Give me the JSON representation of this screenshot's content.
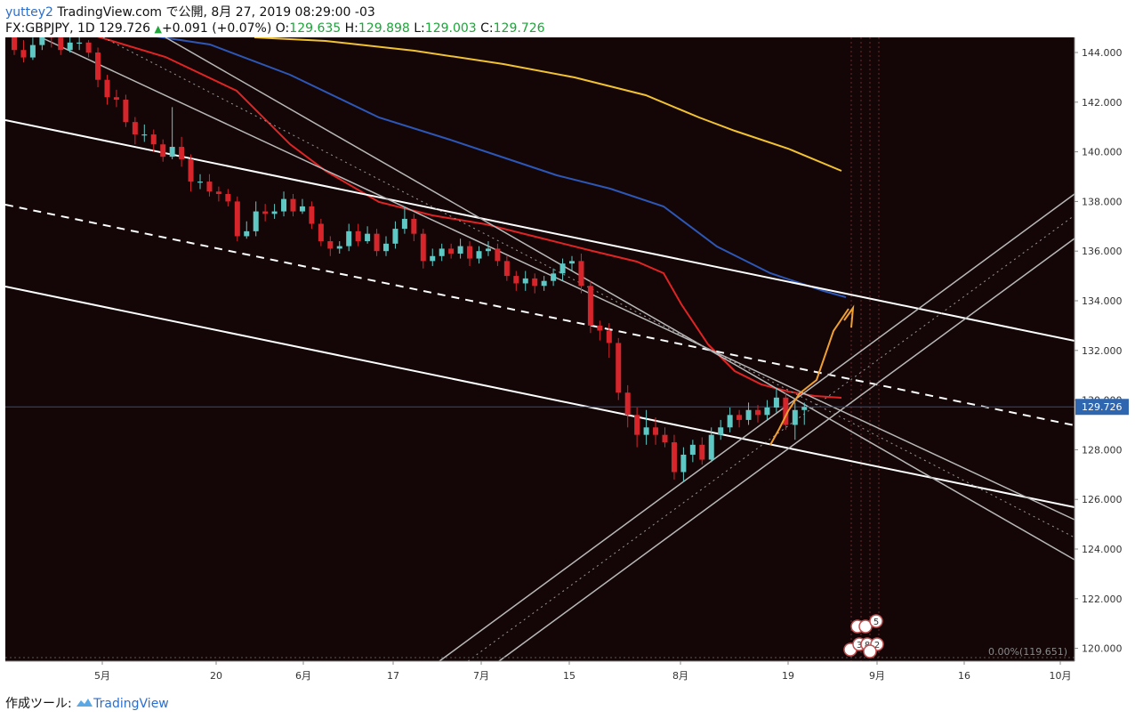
{
  "header": {
    "author": "yuttey2",
    "published": "TradingView.com で公開, 8月 27, 2019 08:29:00 -03",
    "symbol_line": "FX:GBPJPY, 1D 129.726",
    "change_arrow": "▲",
    "change": "+0.091 (+0.07%)",
    "o_label": "O:",
    "o_value": "129.635",
    "h_label": "H:",
    "h_value": "129.898",
    "l_label": "L:",
    "l_value": "129.003",
    "c_label": "C:",
    "c_value": "129.726"
  },
  "footer": {
    "made_with": "作成ツール:",
    "brand": "TradingView",
    "logo_icon": "tradingview-logo-icon"
  },
  "chart_data": {
    "type": "candlestick",
    "symbol": "FX:GBPJPY",
    "interval": "1D",
    "last_price": 129.726,
    "last_price_label": "129.726",
    "ylim": [
      119.6,
      144.4
    ],
    "y_ticks": [
      "144.000",
      "142.000",
      "140.000",
      "138.000",
      "136.000",
      "134.000",
      "132.000",
      "130.000",
      "128.000",
      "126.000",
      "124.000",
      "122.000",
      "120.000"
    ],
    "x_ticks": [
      "5月",
      "20",
      "6月",
      "17",
      "7月",
      "15",
      "8月",
      "19",
      "9月",
      "16",
      "10月"
    ],
    "fib_label": "0.00%(119.651)",
    "event_badges": [
      "5",
      "3",
      "8",
      "2"
    ],
    "colors": {
      "background": "#140607",
      "up": "#5fc8c4",
      "down": "#d6262b",
      "ma_red": "#e02424",
      "ma_blue": "#2d57b7",
      "ma_yellow": "#f1c232",
      "arrow": "#f0a030",
      "price_tag": "#2f66b0"
    },
    "candles": [
      [
        144.7,
        144.1,
        144.9,
        143.9
      ],
      [
        144.1,
        143.8,
        144.5,
        143.6
      ],
      [
        143.8,
        144.3,
        144.6,
        143.7
      ],
      [
        144.3,
        144.7,
        145.0,
        144.1
      ],
      [
        144.7,
        144.6,
        145.0,
        144.2
      ],
      [
        144.6,
        144.1,
        144.8,
        143.9
      ],
      [
        144.1,
        144.4,
        144.7,
        144.0
      ],
      [
        144.4,
        144.4,
        144.8,
        144.1
      ],
      [
        144.4,
        144.0,
        144.5,
        143.8
      ],
      [
        144.0,
        142.9,
        144.2,
        142.6
      ],
      [
        142.9,
        142.2,
        143.1,
        141.9
      ],
      [
        142.2,
        142.1,
        142.5,
        141.8
      ],
      [
        142.1,
        141.2,
        142.3,
        141.0
      ],
      [
        141.2,
        140.7,
        141.4,
        140.3
      ],
      [
        140.7,
        140.7,
        141.1,
        140.4
      ],
      [
        140.7,
        140.3,
        140.9,
        140.0
      ],
      [
        140.3,
        139.8,
        140.5,
        139.6
      ],
      [
        139.8,
        140.2,
        141.8,
        139.7
      ],
      [
        140.2,
        139.7,
        140.6,
        139.4
      ],
      [
        139.7,
        138.8,
        139.9,
        138.4
      ],
      [
        138.8,
        138.8,
        139.1,
        138.5
      ],
      [
        138.8,
        138.4,
        139.1,
        138.2
      ],
      [
        138.4,
        138.3,
        138.6,
        138.0
      ],
      [
        138.3,
        138.0,
        138.5,
        137.8
      ],
      [
        138.0,
        136.6,
        138.2,
        136.4
      ],
      [
        136.6,
        136.8,
        137.2,
        136.5
      ],
      [
        136.8,
        137.6,
        138.0,
        136.6
      ],
      [
        137.6,
        137.5,
        137.9,
        137.2
      ],
      [
        137.5,
        137.6,
        137.9,
        137.3
      ],
      [
        137.6,
        138.1,
        138.4,
        137.4
      ],
      [
        138.1,
        137.6,
        138.3,
        137.4
      ],
      [
        137.6,
        137.8,
        138.1,
        137.5
      ],
      [
        137.8,
        137.1,
        138.0,
        136.9
      ],
      [
        137.1,
        136.4,
        137.3,
        136.2
      ],
      [
        136.4,
        136.1,
        136.6,
        135.8
      ],
      [
        136.1,
        136.2,
        136.4,
        135.9
      ],
      [
        136.2,
        136.8,
        137.1,
        136.0
      ],
      [
        136.8,
        136.4,
        137.1,
        136.2
      ],
      [
        136.4,
        136.7,
        137.0,
        136.3
      ],
      [
        136.7,
        136.0,
        136.9,
        135.8
      ],
      [
        136.0,
        136.3,
        136.6,
        135.8
      ],
      [
        136.3,
        136.9,
        137.2,
        136.1
      ],
      [
        136.9,
        137.3,
        137.8,
        136.7
      ],
      [
        137.3,
        136.7,
        137.5,
        136.4
      ],
      [
        136.7,
        135.6,
        136.9,
        135.3
      ],
      [
        135.6,
        135.8,
        136.1,
        135.4
      ],
      [
        135.8,
        136.1,
        136.3,
        135.6
      ],
      [
        136.1,
        135.9,
        136.3,
        135.7
      ],
      [
        135.9,
        136.2,
        136.5,
        135.7
      ],
      [
        136.2,
        135.7,
        136.4,
        135.4
      ],
      [
        135.7,
        136.0,
        136.2,
        135.5
      ],
      [
        136.0,
        136.1,
        136.4,
        135.8
      ],
      [
        136.1,
        135.6,
        136.3,
        135.4
      ],
      [
        135.6,
        135.0,
        135.8,
        134.8
      ],
      [
        135.0,
        134.7,
        135.2,
        134.4
      ],
      [
        134.7,
        134.9,
        135.2,
        134.4
      ],
      [
        134.9,
        134.6,
        135.1,
        134.3
      ],
      [
        134.6,
        134.8,
        135.0,
        134.4
      ],
      [
        134.8,
        135.1,
        135.3,
        134.6
      ],
      [
        135.1,
        135.5,
        135.7,
        134.8
      ],
      [
        135.5,
        135.6,
        135.8,
        135.2
      ],
      [
        135.6,
        134.6,
        135.9,
        134.3
      ],
      [
        134.6,
        133.0,
        134.8,
        132.7
      ],
      [
        133.0,
        132.8,
        133.2,
        132.4
      ],
      [
        132.8,
        132.3,
        133.1,
        131.7
      ],
      [
        132.3,
        130.3,
        132.5,
        130.0
      ],
      [
        130.3,
        129.4,
        130.6,
        128.9
      ],
      [
        129.4,
        128.6,
        129.7,
        128.1
      ],
      [
        128.6,
        128.9,
        129.6,
        128.2
      ],
      [
        128.9,
        128.6,
        129.3,
        128.2
      ],
      [
        128.6,
        128.3,
        128.9,
        128.1
      ],
      [
        128.3,
        127.1,
        128.6,
        126.8
      ],
      [
        127.1,
        127.8,
        128.1,
        126.7
      ],
      [
        127.8,
        128.2,
        128.4,
        127.5
      ],
      [
        128.2,
        127.6,
        128.5,
        127.4
      ],
      [
        127.6,
        128.6,
        128.9,
        127.5
      ],
      [
        128.6,
        128.9,
        129.2,
        128.4
      ],
      [
        128.9,
        129.4,
        129.7,
        128.7
      ],
      [
        129.4,
        129.2,
        129.6,
        128.9
      ],
      [
        129.2,
        129.6,
        129.9,
        129.0
      ],
      [
        129.6,
        129.4,
        129.8,
        129.1
      ],
      [
        129.4,
        129.7,
        130.0,
        129.2
      ],
      [
        129.7,
        130.1,
        130.5,
        129.5
      ],
      [
        130.1,
        129.0,
        130.3,
        128.8
      ],
      [
        129.0,
        129.6,
        129.9,
        128.4
      ],
      [
        129.6,
        129.726,
        129.898,
        129.003
      ]
    ]
  }
}
